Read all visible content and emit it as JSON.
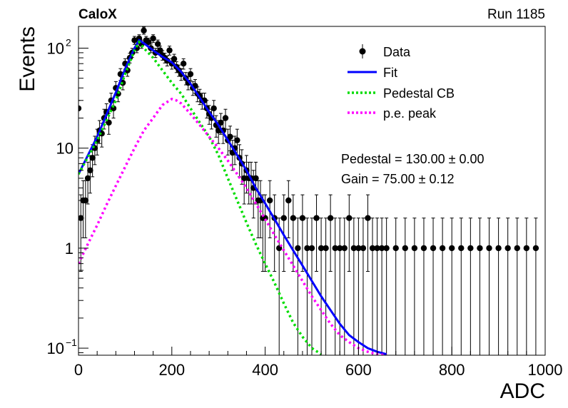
{
  "header": {
    "experiment": "CaloX",
    "run": "Run 1185"
  },
  "stats": {
    "pedestal_text": "Pedestal = 130.00 ± 0.00",
    "gain_text": "Gain = 75.00 ± 0.12"
  },
  "chart_data": {
    "type": "line",
    "title": "",
    "xlabel": "ADC",
    "ylabel": "Events",
    "xlim": [
      0,
      1000
    ],
    "ylim": [
      0.085,
      165
    ],
    "yscale": "log",
    "x_ticks": [
      "0",
      "200",
      "400",
      "600",
      "800",
      "1000"
    ],
    "y_ticks": [
      {
        "value": 0.1,
        "label": "10",
        "sup": "−1"
      },
      {
        "value": 1,
        "label": "1",
        "sup": ""
      },
      {
        "value": 10,
        "label": "10",
        "sup": ""
      },
      {
        "value": 100,
        "label": "10",
        "sup": "2"
      }
    ],
    "legend": {
      "position": "top-right",
      "entries": [
        {
          "label": "Data",
          "style": "marker",
          "color": "#000000"
        },
        {
          "label": "Fit",
          "style": "solid",
          "color": "#0000ff"
        },
        {
          "label": "Pedestal CB",
          "style": "dotted",
          "color": "#00dd00"
        },
        {
          "label": "p.e. peak",
          "style": "dotted",
          "color": "#ff00ff"
        }
      ]
    },
    "series": [
      {
        "name": "Data",
        "kind": "points",
        "color": "#000000",
        "x": [
          0,
          5,
          10,
          15,
          20,
          25,
          30,
          35,
          40,
          45,
          50,
          55,
          60,
          65,
          70,
          75,
          80,
          85,
          90,
          95,
          100,
          105,
          110,
          115,
          120,
          125,
          130,
          135,
          140,
          145,
          150,
          155,
          160,
          165,
          170,
          175,
          180,
          185,
          190,
          195,
          200,
          205,
          210,
          215,
          220,
          225,
          230,
          235,
          240,
          245,
          250,
          255,
          260,
          265,
          270,
          275,
          280,
          285,
          290,
          295,
          300,
          305,
          310,
          315,
          320,
          325,
          330,
          335,
          340,
          345,
          350,
          355,
          360,
          365,
          370,
          375,
          380,
          385,
          390,
          395,
          400,
          410,
          420,
          430,
          440,
          450,
          460,
          470,
          480,
          490,
          500,
          510,
          520,
          530,
          540,
          550,
          560,
          570,
          580,
          590,
          600,
          610,
          620,
          630,
          640,
          650,
          660,
          680,
          700,
          720,
          740,
          760,
          780,
          800,
          820,
          840,
          860,
          880,
          900,
          920,
          940,
          960,
          980
        ],
        "y": [
          25,
          2,
          3,
          3,
          5,
          6,
          8,
          10,
          12,
          15,
          14,
          20,
          23,
          18,
          30,
          25,
          40,
          35,
          55,
          45,
          70,
          60,
          80,
          90,
          120,
          100,
          125,
          110,
          150,
          120,
          115,
          100,
          125,
          90,
          110,
          95,
          85,
          80,
          75,
          95,
          70,
          78,
          65,
          60,
          55,
          70,
          50,
          45,
          55,
          40,
          42,
          35,
          33,
          30,
          30,
          25,
          22,
          20,
          25,
          17,
          15,
          18,
          15,
          20,
          12,
          13,
          9,
          10,
          12,
          8,
          7,
          5,
          6,
          5,
          5,
          4,
          5,
          3,
          3,
          2,
          2,
          3,
          2,
          1,
          2,
          3,
          2,
          1,
          2,
          1,
          1,
          2,
          1,
          1,
          2,
          1,
          1,
          1,
          2,
          1,
          1,
          1,
          2,
          1,
          1,
          1,
          1,
          1,
          1,
          1,
          1,
          1,
          1,
          1,
          1,
          1,
          1,
          1,
          1,
          1,
          1,
          1,
          1
        ]
      },
      {
        "name": "Fit",
        "kind": "line",
        "color": "#0000ff",
        "x": [
          0,
          40,
          80,
          100,
          120,
          130,
          140,
          160,
          180,
          200,
          220,
          240,
          260,
          280,
          300,
          320,
          340,
          360,
          380,
          400,
          420,
          440,
          460,
          480,
          500,
          520,
          540,
          560,
          580,
          600,
          620,
          640,
          660
        ],
        "y": [
          5.5,
          13,
          36,
          62,
          100,
          120,
          112,
          95,
          82,
          72,
          58,
          44,
          32,
          23,
          17,
          12,
          8.5,
          6,
          4,
          2.8,
          1.95,
          1.35,
          0.95,
          0.67,
          0.47,
          0.33,
          0.24,
          0.175,
          0.135,
          0.115,
          0.1,
          0.092,
          0.087
        ]
      },
      {
        "name": "Pedestal CB",
        "kind": "dotted",
        "color": "#00dd00",
        "x": [
          0,
          40,
          80,
          100,
          120,
          130,
          140,
          160,
          180,
          200,
          220,
          240,
          260,
          280,
          300,
          320,
          340,
          360,
          380,
          400,
          420,
          440,
          460,
          480,
          500,
          520
        ],
        "y": [
          5.5,
          12,
          30,
          55,
          95,
          115,
          100,
          80,
          60,
          45,
          35,
          25,
          18,
          13,
          8.5,
          5,
          3,
          1.8,
          1.1,
          0.7,
          0.45,
          0.28,
          0.18,
          0.13,
          0.1,
          0.087
        ]
      },
      {
        "name": "p.e. peak",
        "kind": "dotted",
        "color": "#ff00ff",
        "x": [
          0,
          20,
          40,
          60,
          80,
          100,
          120,
          140,
          160,
          180,
          200,
          210,
          220,
          240,
          260,
          280,
          300,
          320,
          340,
          360,
          380,
          400,
          420,
          440,
          460,
          480,
          500,
          520,
          540,
          560,
          580,
          600,
          620,
          640,
          660
        ],
        "y": [
          0.7,
          1.1,
          1.7,
          2.7,
          4.2,
          6.5,
          10,
          15,
          20,
          27,
          31,
          30,
          28,
          22,
          17,
          13,
          10,
          7.5,
          5.5,
          4,
          2.8,
          1.95,
          1.35,
          0.95,
          0.67,
          0.47,
          0.33,
          0.24,
          0.175,
          0.135,
          0.115,
          0.1,
          0.092,
          0.087,
          0.085
        ]
      }
    ]
  }
}
